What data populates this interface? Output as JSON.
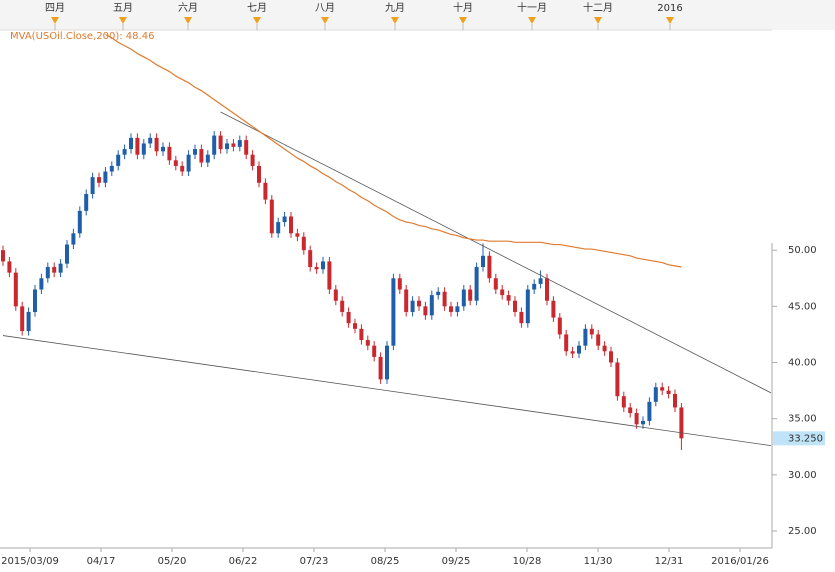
{
  "chart_data": {
    "type": "candlestick",
    "legend": "MVA(USOil.Close,200): 48.46",
    "top_labels": [
      "四月",
      "五月",
      "六月",
      "七月",
      "八月",
      "九月",
      "十月",
      "十一月",
      "十二月",
      "2016"
    ],
    "x_labels": [
      "2015/03/09",
      "04/17",
      "05/20",
      "06/22",
      "07/23",
      "08/25",
      "09/25",
      "10/28",
      "11/30",
      "12/31",
      "2016/01/26"
    ],
    "ylim": [
      24.2,
      69.6
    ],
    "yticks": [
      {
        "value": 25,
        "label": "25.00"
      },
      {
        "value": 30,
        "label": "30.00"
      },
      {
        "value": 35,
        "label": "35.00"
      },
      {
        "value": 40,
        "label": "40.00"
      },
      {
        "value": 45,
        "label": "45.00"
      },
      {
        "value": 50,
        "label": "50.00"
      }
    ],
    "current_price": {
      "value": 33.25,
      "label": "33.250"
    },
    "up_color": "#1f5fa8",
    "down_color": "#c8282e",
    "mva_color": "#e07a2e",
    "candles": [
      [
        50,
        50.4,
        48.6,
        49
      ],
      [
        49,
        49.4,
        47.6,
        48
      ],
      [
        48,
        48.4,
        44.6,
        45
      ],
      [
        45,
        45.4,
        42.4,
        42.8
      ],
      [
        42.8,
        44.9,
        42.4,
        44.5
      ],
      [
        44.5,
        46.9,
        44.1,
        46.5
      ],
      [
        46.5,
        47.9,
        46.1,
        47.5
      ],
      [
        47.5,
        48.9,
        47.1,
        48.5
      ],
      [
        48.5,
        48.9,
        47.6,
        48
      ],
      [
        48,
        49.2,
        47.6,
        48.8
      ],
      [
        48.8,
        50.9,
        48.4,
        50.5
      ],
      [
        50.5,
        51.9,
        50.1,
        51.5
      ],
      [
        51.5,
        53.9,
        51.1,
        53.5
      ],
      [
        53.5,
        55.4,
        53.1,
        55
      ],
      [
        55,
        56.9,
        54.6,
        56.5
      ],
      [
        56.5,
        56.9,
        55.6,
        56
      ],
      [
        56,
        57.4,
        55.6,
        57
      ],
      [
        57,
        57.9,
        56.6,
        57.5
      ],
      [
        57.5,
        58.9,
        57.1,
        58.5
      ],
      [
        58.5,
        59.4,
        58.1,
        59
      ],
      [
        59,
        60.4,
        58.6,
        60
      ],
      [
        60,
        60.4,
        58.1,
        58.5
      ],
      [
        58.5,
        59.9,
        58.1,
        59.5
      ],
      [
        59.5,
        60.4,
        59.1,
        60
      ],
      [
        60,
        60.4,
        58.4,
        58.8
      ],
      [
        58.8,
        59.6,
        58.4,
        59.2
      ],
      [
        59.2,
        59.6,
        57.6,
        58
      ],
      [
        58,
        58.4,
        57.1,
        57.5
      ],
      [
        57.5,
        57.9,
        56.6,
        57
      ],
      [
        57,
        58.9,
        56.6,
        58.5
      ],
      [
        58.5,
        59.4,
        58.1,
        59
      ],
      [
        59,
        59.4,
        57.4,
        57.8
      ],
      [
        57.8,
        58.9,
        57.4,
        58.5
      ],
      [
        58.5,
        60.6,
        58.1,
        60.2
      ],
      [
        60.2,
        60.6,
        58.6,
        59
      ],
      [
        59,
        59.9,
        58.6,
        59.5
      ],
      [
        59.5,
        59.9,
        58.8,
        59.2
      ],
      [
        59.2,
        60.2,
        58.8,
        59.8
      ],
      [
        59.8,
        60.2,
        58.1,
        58.5
      ],
      [
        58.5,
        58.9,
        57.1,
        57.5
      ],
      [
        57.5,
        57.9,
        55.6,
        56
      ],
      [
        56,
        56.4,
        54.1,
        54.5
      ],
      [
        54.5,
        54.9,
        51.1,
        51.5
      ],
      [
        51.5,
        52.9,
        51.1,
        52.5
      ],
      [
        52.5,
        53.4,
        52.1,
        53
      ],
      [
        53,
        53.4,
        51.1,
        51.5
      ],
      [
        51.5,
        51.9,
        50.8,
        51.2
      ],
      [
        51.2,
        51.6,
        49.6,
        50
      ],
      [
        50,
        50.4,
        48.1,
        48.5
      ],
      [
        48.5,
        48.9,
        47.9,
        48.3
      ],
      [
        48.3,
        49.4,
        47.9,
        49
      ],
      [
        49,
        49.4,
        46.1,
        46.5
      ],
      [
        46.5,
        46.9,
        45.1,
        45.5
      ],
      [
        45.5,
        45.9,
        44.1,
        44.5
      ],
      [
        44.5,
        44.9,
        43.1,
        43.5
      ],
      [
        43.5,
        43.9,
        42.6,
        43
      ],
      [
        43,
        43.4,
        41.6,
        42
      ],
      [
        42,
        42.4,
        41.1,
        41.5
      ],
      [
        41.5,
        41.9,
        40.1,
        40.5
      ],
      [
        40.5,
        40.9,
        38.1,
        38.5
      ],
      [
        38.5,
        41.9,
        38.1,
        41.5
      ],
      [
        41.5,
        47.9,
        41.1,
        47.5
      ],
      [
        47.5,
        47.9,
        46.1,
        46.5
      ],
      [
        46.5,
        46.9,
        44.1,
        44.5
      ],
      [
        44.5,
        45.9,
        44.1,
        45.5
      ],
      [
        45.5,
        45.9,
        44.6,
        45
      ],
      [
        45,
        45.4,
        43.8,
        44.2
      ],
      [
        44.2,
        46.4,
        43.8,
        46
      ],
      [
        46,
        46.7,
        45.6,
        46.3
      ],
      [
        46.3,
        46.7,
        44.6,
        45
      ],
      [
        45,
        45.4,
        44.1,
        44.5
      ],
      [
        44.5,
        45.4,
        44.1,
        45
      ],
      [
        45,
        46.9,
        44.6,
        46.5
      ],
      [
        46.5,
        46.9,
        45.1,
        45.5
      ],
      [
        45.5,
        48.9,
        45.1,
        48.5
      ],
      [
        48.5,
        50.6,
        48.1,
        49.5
      ],
      [
        49.5,
        49.9,
        47.1,
        47.5
      ],
      [
        47.5,
        47.9,
        46.1,
        46.5
      ],
      [
        46.5,
        46.9,
        45.6,
        46
      ],
      [
        46,
        46.4,
        45.1,
        45.5
      ],
      [
        45.5,
        45.9,
        44.1,
        44.5
      ],
      [
        44.5,
        44.9,
        43.1,
        43.5
      ],
      [
        43.5,
        46.9,
        43.1,
        46.5
      ],
      [
        46.5,
        47.4,
        46.1,
        47
      ],
      [
        47,
        48.2,
        46.6,
        47.5
      ],
      [
        47.5,
        47.9,
        45.1,
        45.5
      ],
      [
        45.5,
        45.9,
        43.6,
        44
      ],
      [
        44,
        44.4,
        42.1,
        42.5
      ],
      [
        42.5,
        42.9,
        40.6,
        41
      ],
      [
        41,
        41.4,
        40.4,
        40.8
      ],
      [
        40.8,
        41.9,
        40.4,
        41.5
      ],
      [
        41.5,
        43.4,
        41.1,
        43
      ],
      [
        43,
        43.4,
        42.1,
        42.5
      ],
      [
        42.5,
        42.9,
        41.1,
        41.5
      ],
      [
        41.5,
        41.9,
        40.6,
        41
      ],
      [
        41,
        41.4,
        39.6,
        40
      ],
      [
        40,
        40.4,
        36.6,
        37
      ],
      [
        37,
        37.4,
        35.6,
        36
      ],
      [
        36,
        36.4,
        35.1,
        35.5
      ],
      [
        35.5,
        35.9,
        34.1,
        34.5
      ],
      [
        34.5,
        35.2,
        34.1,
        34.8
      ],
      [
        34.8,
        36.9,
        34.4,
        36.5
      ],
      [
        36.5,
        38.2,
        36.1,
        37.8
      ],
      [
        37.8,
        38.2,
        37.1,
        37.5
      ],
      [
        37.5,
        37.9,
        36.8,
        37.2
      ],
      [
        37.2,
        37.6,
        35.6,
        36
      ],
      [
        36,
        36.4,
        32.2,
        33.25
      ]
    ],
    "mva": [
      null,
      null,
      null,
      null,
      null,
      null,
      null,
      null,
      null,
      null,
      null,
      null,
      null,
      null,
      null,
      null,
      69.2,
      68.9,
      68.5,
      68.2,
      67.9,
      67.5,
      67.2,
      66.9,
      66.5,
      66.2,
      65.9,
      65.5,
      65.2,
      64.9,
      64.5,
      64.2,
      63.8,
      63.4,
      63,
      62.6,
      62.2,
      61.8,
      61.4,
      61,
      60.6,
      60.2,
      59.8,
      59.4,
      59,
      58.6,
      58.2,
      57.9,
      57.5,
      57.2,
      56.8,
      56.5,
      56.1,
      55.8,
      55.4,
      55.1,
      54.7,
      54.4,
      54,
      53.7,
      53.4,
      53,
      52.7,
      52.5,
      52.4,
      52.2,
      52.1,
      51.9,
      51.8,
      51.6,
      51.4,
      51.3,
      51.1,
      51,
      50.9,
      50.9,
      50.8,
      50.8,
      50.8,
      50.8,
      50.7,
      50.7,
      50.7,
      50.7,
      50.7,
      50.6,
      50.5,
      50.5,
      50.4,
      50.3,
      50.2,
      50.1,
      50.1,
      50,
      49.9,
      49.8,
      49.7,
      49.6,
      49.5,
      49.3,
      49.2,
      49.1,
      49,
      48.9,
      48.7,
      48.6,
      48.5
    ],
    "trendlines": [
      {
        "from": {
          "index": 34,
          "value": 62.3
        },
        "to": {
          "index": 120,
          "value": 37.3
        }
      },
      {
        "from": {
          "index": 0,
          "value": 42.4
        },
        "to": {
          "index": 120,
          "value": 32.6
        }
      }
    ]
  }
}
